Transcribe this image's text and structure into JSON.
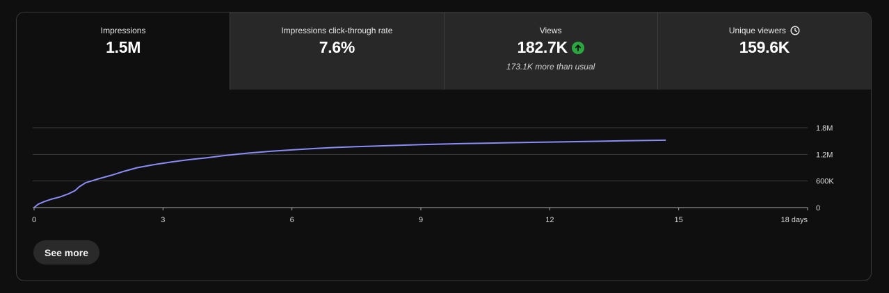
{
  "tabs": [
    {
      "label": "Impressions",
      "value": "1.5M",
      "note": ""
    },
    {
      "label": "Impressions click-through rate",
      "value": "7.6%",
      "note": ""
    },
    {
      "label": "Views",
      "value": "182.7K",
      "note": "173.1K more than usual",
      "icon": "arrow-up-circle-icon"
    },
    {
      "label": "Unique viewers",
      "value": "159.6K",
      "note": "",
      "icon": "clock-icon"
    }
  ],
  "colors": {
    "line": "#8b8cf7",
    "up_badge": "#2ba640",
    "background": "#0f0f0f",
    "tab_inactive": "#282828"
  },
  "chart_data": {
    "type": "line",
    "series_name": "Impressions",
    "x": [
      0,
      0.1,
      0.25,
      0.4,
      0.6,
      0.8,
      0.95,
      1.05,
      1.2,
      1.5,
      1.8,
      2.1,
      2.4,
      2.8,
      3.2,
      3.6,
      4.0,
      4.4,
      5.0,
      5.5,
      6.0,
      6.5,
      7.0,
      7.5,
      8.0,
      8.5,
      9.0,
      9.5,
      10.0,
      10.5,
      11.0,
      11.5,
      12.0,
      12.5,
      13.0,
      13.5,
      14.0,
      14.7
    ],
    "y": [
      0,
      80000,
      140000,
      190000,
      240000,
      310000,
      380000,
      470000,
      560000,
      650000,
      730000,
      820000,
      900000,
      970000,
      1030000,
      1080000,
      1120000,
      1170000,
      1230000,
      1270000,
      1300000,
      1330000,
      1355000,
      1375000,
      1390000,
      1405000,
      1420000,
      1432000,
      1443000,
      1453000,
      1462000,
      1470000,
      1478000,
      1486000,
      1494000,
      1502000,
      1510000,
      1520000
    ],
    "xticks": [
      "0",
      "3",
      "6",
      "9",
      "12",
      "15",
      "18 days"
    ],
    "xtick_values": [
      0,
      3,
      6,
      9,
      12,
      15,
      18
    ],
    "yticks": [
      "1.8M",
      "1.2M",
      "600K",
      "0"
    ],
    "ytick_values": [
      1800000,
      1200000,
      600000,
      0
    ],
    "xlim": [
      0,
      18
    ],
    "ylim": [
      0,
      1800000
    ],
    "grid": true
  },
  "see_more_label": "See more"
}
